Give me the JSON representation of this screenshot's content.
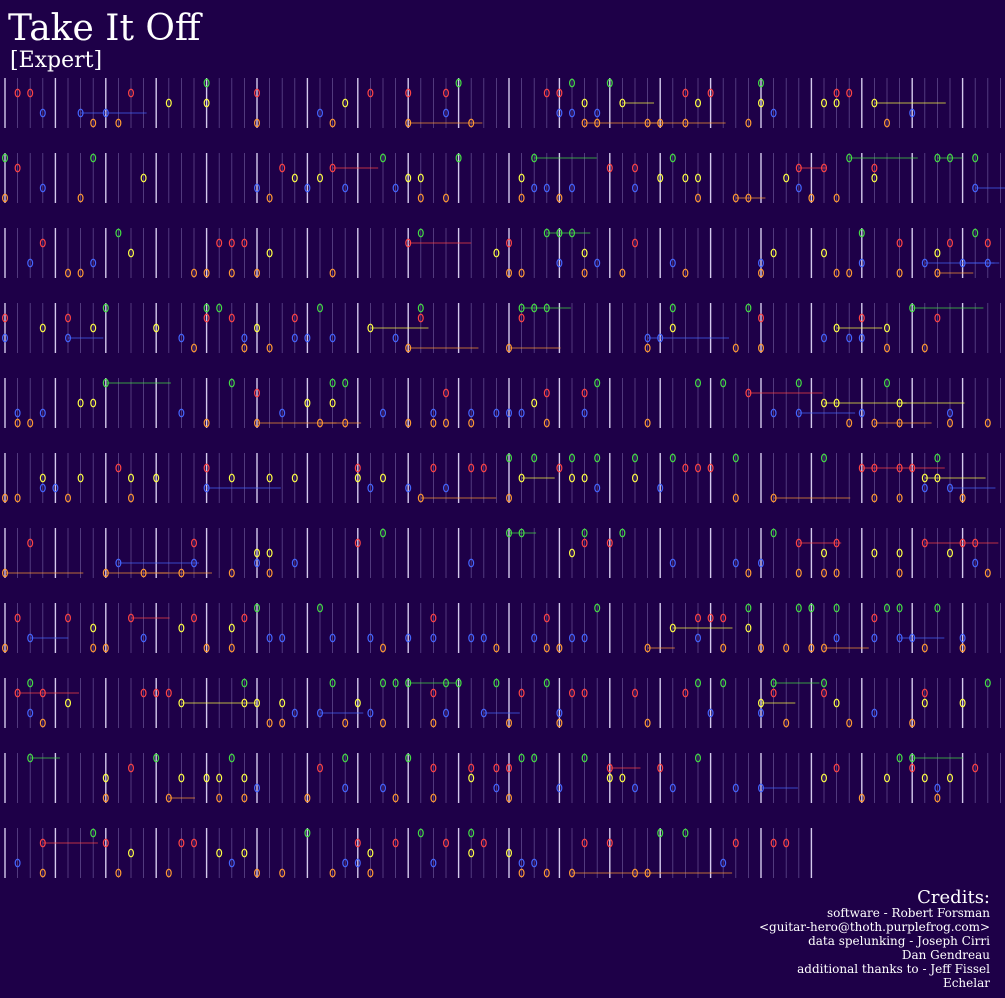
{
  "header": {
    "title": "Take It Off",
    "subtitle": "[Expert]"
  },
  "credits": {
    "heading": "Credits:",
    "lines": [
      "software - Robert Forsman",
      "<guitar-hero@thoth.purplefrog.com>",
      "data spelunking - Joseph Cirri",
      "Dan Gendreau",
      "additional thanks to - Jeff Fissel",
      "Echelar"
    ]
  }
}
